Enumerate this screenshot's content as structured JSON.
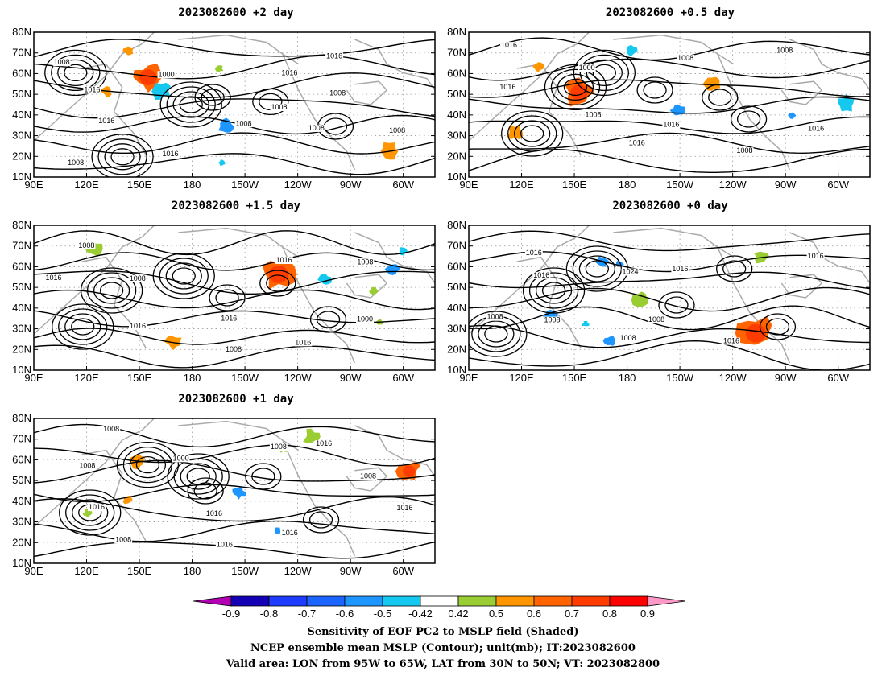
{
  "panels": [
    {
      "title": "2023082600 +2 day",
      "labels": [
        "1008",
        "1008",
        "1016",
        "1016",
        "1016",
        "1008",
        "1000",
        "1008",
        "1016",
        "1016",
        "1008",
        "1008",
        "1008"
      ],
      "features": {
        "lows": [
          [
            -2.2,
            0.72
          ],
          [
            -0.6,
            0.5
          ],
          [
            -1.55,
            0.14
          ]
        ],
        "highs": [
          [
            1.4,
            0.35
          ],
          [
            0.5,
            0.52
          ],
          [
            -0.3,
            0.55
          ]
        ]
      }
    },
    {
      "title": "2023082600 +0.5 day",
      "labels": [
        "1016",
        "1016",
        "1008",
        "1008",
        "1008",
        "1016",
        "1000",
        "1008",
        "1016",
        "1016"
      ],
      "features": {
        "lows": [
          [
            -1.3,
            0.62
          ],
          [
            -0.9,
            0.72
          ],
          [
            -1.9,
            0.3
          ]
        ],
        "highs": [
          [
            1.1,
            0.4
          ],
          [
            0.7,
            0.55
          ],
          [
            -0.2,
            0.6
          ]
        ]
      }
    },
    {
      "title": "2023082600 +1.5 day",
      "labels": [
        "1008",
        "1016",
        "1008",
        "1016",
        "1016",
        "1000",
        "1008",
        "1016",
        "1016",
        "1008"
      ],
      "features": {
        "lows": [
          [
            -0.7,
            0.65
          ],
          [
            -1.7,
            0.55
          ],
          [
            -2.1,
            0.3
          ]
        ],
        "highs": [
          [
            1.3,
            0.35
          ],
          [
            0.6,
            0.6
          ],
          [
            -0.1,
            0.5
          ]
        ]
      }
    },
    {
      "title": "2023082600 +0 day",
      "labels": [
        "1016",
        "1008",
        "1016",
        "1008",
        "1016",
        "1008",
        "1024",
        "1016",
        "1016",
        "1008"
      ],
      "features": {
        "lows": [
          [
            -1.0,
            0.7
          ],
          [
            -2.4,
            0.25
          ],
          [
            -1.6,
            0.55
          ]
        ],
        "highs": [
          [
            1.5,
            0.3
          ],
          [
            0.9,
            0.7
          ],
          [
            0.1,
            0.45
          ]
        ]
      }
    },
    {
      "title": "2023082600 +1 day",
      "labels": [
        "1008",
        "1016",
        "1016",
        "1016",
        "1008",
        "1016",
        "1000",
        "1016",
        "1008",
        "1016",
        "1008",
        "1008"
      ],
      "features": {
        "lows": [
          [
            -1.2,
            0.68
          ],
          [
            -0.5,
            0.6
          ],
          [
            -2.0,
            0.35
          ]
        ],
        "highs": [
          [
            1.2,
            0.3
          ],
          [
            0.4,
            0.6
          ],
          [
            -0.4,
            0.5
          ]
        ]
      }
    }
  ],
  "x_axis_ticks": [
    "90E",
    "120E",
    "150E",
    "180",
    "150W",
    "120W",
    "90W",
    "60W"
  ],
  "y_axis_ticks": [
    "10N",
    "20N",
    "30N",
    "40N",
    "50N",
    "60N",
    "70N",
    "80N"
  ],
  "colorbar": {
    "tick_labels": [
      "-0.9",
      "-0.8",
      "-0.7",
      "-0.6",
      "-0.5",
      "-0.42",
      "0.42",
      "0.5",
      "0.6",
      "0.7",
      "0.8",
      "0.9"
    ],
    "colors": [
      "#b400b4",
      "#1400b4",
      "#1e3cff",
      "#1c64ff",
      "#1e96ff",
      "#14c8f0",
      "#ffffff",
      "#9acd32",
      "#ff9600",
      "#ff6400",
      "#ff3c00",
      "#ff0000",
      "#ff9ac8"
    ]
  },
  "caption": {
    "line1": "Sensitivity of EOF PC2 to MSLP field (Shaded)",
    "line2": "NCEP ensemble mean MSLP (Contour); unit(mb); IT:2023082600",
    "line3": "Valid area: LON from 95W to 65W, LAT from 30N to 50N; VT: 2023082800"
  }
}
